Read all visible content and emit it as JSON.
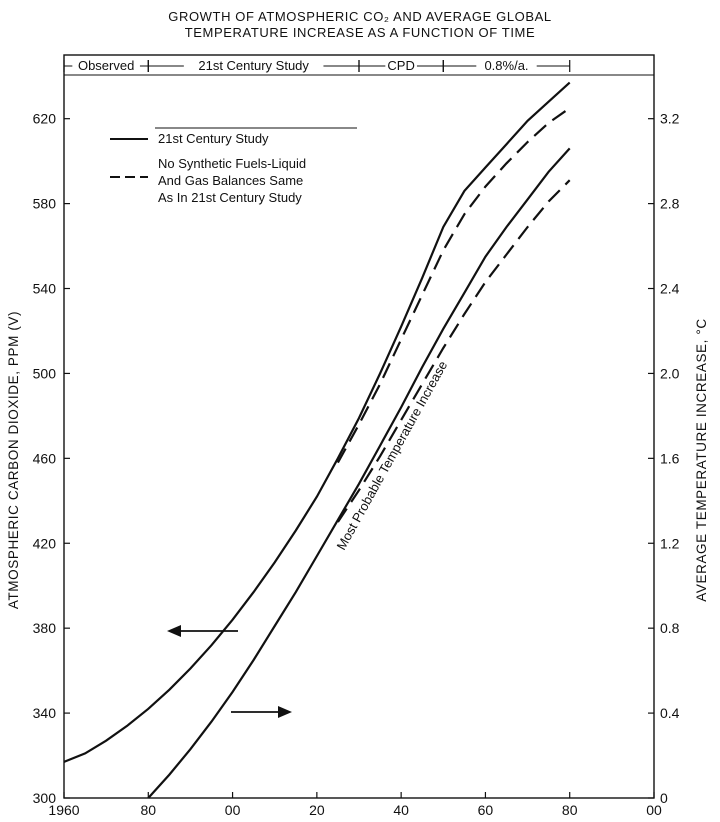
{
  "chart_data": {
    "type": "line",
    "title": "GROWTH OF ATMOSPHERIC CO₂ AND AVERAGE GLOBAL TEMPERATURE INCREASE AS A FUNCTION OF TIME",
    "title_lines": [
      "GROWTH OF ATMOSPHERIC CO₂ AND AVERAGE GLOBAL",
      "TEMPERATURE INCREASE AS A FUNCTION OF TIME"
    ],
    "ylabel": "ATMOSPHERIC CARBON DIOXIDE, PPM (V)",
    "y2label": "AVERAGE TEMPERATURE INCREASE, °C",
    "xlim": [
      1960,
      2100
    ],
    "ylim": [
      300,
      650
    ],
    "y2lim": [
      0,
      3.5
    ],
    "x_ticks": [
      {
        "value": 1960,
        "label": "1960"
      },
      {
        "value": 1980,
        "label": "80"
      },
      {
        "value": 2000,
        "label": "00"
      },
      {
        "value": 2020,
        "label": "20"
      },
      {
        "value": 2040,
        "label": "40"
      },
      {
        "value": 2060,
        "label": "60"
      },
      {
        "value": 2080,
        "label": "80"
      },
      {
        "value": 2100,
        "label": "00"
      }
    ],
    "y_ticks": [
      {
        "value": 300,
        "label": "300"
      },
      {
        "value": 340,
        "label": "340"
      },
      {
        "value": 380,
        "label": "380"
      },
      {
        "value": 420,
        "label": "420"
      },
      {
        "value": 460,
        "label": "460"
      },
      {
        "value": 500,
        "label": "500"
      },
      {
        "value": 540,
        "label": "540"
      },
      {
        "value": 580,
        "label": "580"
      },
      {
        "value": 620,
        "label": "620"
      }
    ],
    "y2_ticks": [
      {
        "value": 0,
        "label": "0"
      },
      {
        "value": 0.4,
        "label": "0.4"
      },
      {
        "value": 0.8,
        "label": "0.8"
      },
      {
        "value": 1.2,
        "label": "1.2"
      },
      {
        "value": 1.6,
        "label": "1.6"
      },
      {
        "value": 2.0,
        "label": "2.0"
      },
      {
        "value": 2.4,
        "label": "2.4"
      },
      {
        "value": 2.8,
        "label": "2.8"
      },
      {
        "value": 3.2,
        "label": "3.2"
      }
    ],
    "periods": [
      {
        "label": "Observed",
        "start": 1960,
        "end": 1980
      },
      {
        "label": "21st Century Study",
        "start": 1980,
        "end": 2030
      },
      {
        "label": "CPD",
        "start": 2030,
        "end": 2050
      },
      {
        "label": "0.8%/a.",
        "start": 2050,
        "end": 2080
      }
    ],
    "legend": [
      {
        "label": "21st Century Study",
        "style": "solid"
      },
      {
        "label": "No Synthetic Fuels-Liquid And Gas Balances Same As In 21st Century Study",
        "label_lines": [
          "No Synthetic Fuels-Liquid",
          "And Gas Balances Same",
          "As In 21st Century Study"
        ],
        "style": "dashed"
      }
    ],
    "annotation": "Most Probable Temperature Increase",
    "series": [
      {
        "axis": "left",
        "style": "solid",
        "color": "#111111",
        "points": [
          [
            1960,
            317
          ],
          [
            1965,
            321
          ],
          [
            1970,
            327
          ],
          [
            1975,
            334
          ],
          [
            1980,
            342
          ],
          [
            1985,
            351
          ],
          [
            1990,
            361
          ],
          [
            1995,
            372
          ],
          [
            2000,
            384
          ],
          [
            2005,
            397
          ],
          [
            2010,
            411
          ],
          [
            2015,
            426
          ],
          [
            2020,
            442
          ],
          [
            2025,
            460
          ],
          [
            2030,
            479
          ],
          [
            2035,
            500
          ],
          [
            2040,
            522
          ],
          [
            2045,
            545
          ],
          [
            2050,
            569
          ],
          [
            2055,
            586
          ],
          [
            2060,
            597
          ],
          [
            2065,
            608
          ],
          [
            2070,
            619
          ],
          [
            2075,
            628
          ],
          [
            2080,
            637
          ]
        ]
      },
      {
        "axis": "left",
        "style": "dashed",
        "color": "#111111",
        "points": [
          [
            2025,
            458
          ],
          [
            2030,
            476
          ],
          [
            2035,
            495
          ],
          [
            2040,
            516
          ],
          [
            2045,
            537
          ],
          [
            2050,
            558
          ],
          [
            2055,
            575
          ],
          [
            2060,
            588
          ],
          [
            2065,
            599
          ],
          [
            2070,
            609
          ],
          [
            2075,
            618
          ],
          [
            2080,
            625
          ]
        ]
      },
      {
        "axis": "right",
        "style": "solid",
        "color": "#111111",
        "points": [
          [
            1980,
            0.0
          ],
          [
            1985,
            0.11
          ],
          [
            1990,
            0.23
          ],
          [
            1995,
            0.36
          ],
          [
            2000,
            0.5
          ],
          [
            2005,
            0.65
          ],
          [
            2010,
            0.81
          ],
          [
            2015,
            0.97
          ],
          [
            2020,
            1.14
          ],
          [
            2025,
            1.31
          ],
          [
            2030,
            1.48
          ],
          [
            2035,
            1.66
          ],
          [
            2040,
            1.84
          ],
          [
            2045,
            2.03
          ],
          [
            2050,
            2.21
          ],
          [
            2055,
            2.38
          ],
          [
            2060,
            2.55
          ],
          [
            2065,
            2.69
          ],
          [
            2070,
            2.82
          ],
          [
            2075,
            2.95
          ],
          [
            2080,
            3.06
          ]
        ]
      },
      {
        "axis": "right",
        "style": "dashed",
        "color": "#111111",
        "points": [
          [
            2025,
            1.3
          ],
          [
            2030,
            1.45
          ],
          [
            2035,
            1.61
          ],
          [
            2040,
            1.78
          ],
          [
            2045,
            1.95
          ],
          [
            2050,
            2.12
          ],
          [
            2055,
            2.28
          ],
          [
            2060,
            2.43
          ],
          [
            2065,
            2.56
          ],
          [
            2070,
            2.69
          ],
          [
            2075,
            2.81
          ],
          [
            2080,
            2.91
          ]
        ]
      }
    ]
  }
}
